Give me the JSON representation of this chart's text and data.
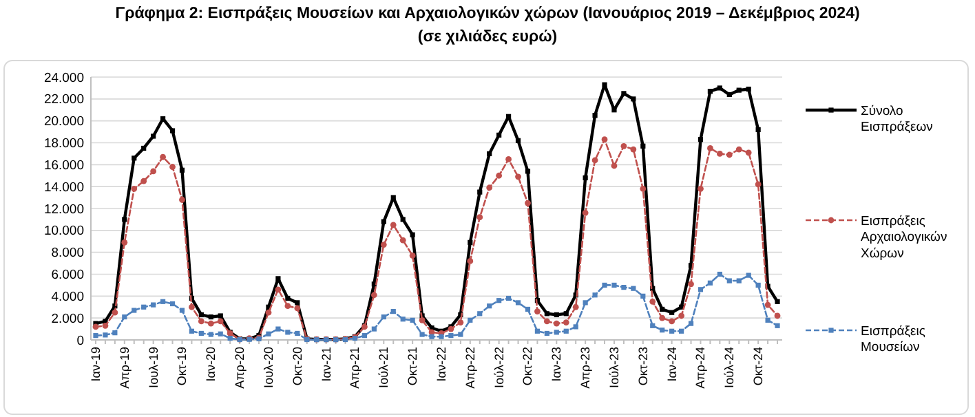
{
  "chart_data": {
    "type": "line",
    "title": "Γράφημα 2: Εισπράξεις Μουσείων και Αρχαιολογικών χώρων (Ιανουάριος 2019 – Δεκέμβριος 2024)",
    "subtitle": "(σε χιλιάδες ευρώ)",
    "categories": [
      "Ιαν-19",
      null,
      null,
      "Απρ-19",
      null,
      null,
      "Ιουλ-19",
      null,
      null,
      "Οκτ-19",
      null,
      null,
      "Ιαν-20",
      null,
      null,
      "Απρ-20",
      null,
      null,
      "Ιουλ-20",
      null,
      null,
      "Οκτ-20",
      null,
      null,
      "Ιαν-21",
      null,
      null,
      "Απρ-21",
      null,
      null,
      "Ιούλ-21",
      null,
      null,
      "Οκτ-21",
      null,
      null,
      "Ιαν-22",
      null,
      null,
      "Απρ-22",
      null,
      null,
      "Ιούλ-22",
      null,
      null,
      "Οκτ-22",
      null,
      null,
      "Ιαν-23",
      null,
      null,
      "Απρ-23",
      null,
      null,
      "Ιούλ-23",
      null,
      null,
      "Οκτ-23",
      null,
      null,
      "Ιαν-24",
      null,
      null,
      "Απρ-24",
      null,
      null,
      "Ιούλ-24",
      null,
      null,
      "Οκτ-24",
      null,
      null
    ],
    "series": [
      {
        "name": "Σύνολο Εισπράξεων",
        "color": "#000000",
        "marker": "square",
        "line_style": "solid",
        "values": [
          1500,
          1700,
          3100,
          11000,
          16600,
          17500,
          18600,
          20200,
          19100,
          15500,
          3800,
          2300,
          2100,
          2200,
          700,
          100,
          100,
          400,
          3000,
          5600,
          3800,
          3400,
          100,
          50,
          50,
          50,
          100,
          300,
          1300,
          5100,
          10800,
          13000,
          11000,
          9600,
          2200,
          1100,
          800,
          1200,
          2300,
          8900,
          13500,
          17000,
          18700,
          20400,
          18200,
          15400,
          3600,
          2400,
          2300,
          2400,
          4100,
          14800,
          20500,
          23300,
          21000,
          22500,
          22000,
          17700,
          4700,
          2800,
          2500,
          3000,
          6800,
          18300,
          22700,
          23000,
          22400,
          22800,
          22900,
          19200,
          4900,
          3500
        ]
      },
      {
        "name": "Εισπράξεις Αρχαιολογικών Χώρων",
        "color": "#c0504d",
        "marker": "circle",
        "line_style": "dashed",
        "values": [
          1200,
          1300,
          2500,
          8900,
          13800,
          14500,
          15400,
          16700,
          15800,
          12800,
          3000,
          1700,
          1500,
          1700,
          600,
          50,
          150,
          200,
          2500,
          4600,
          3100,
          2900,
          80,
          50,
          50,
          50,
          80,
          250,
          1200,
          4100,
          8700,
          10500,
          9100,
          7700,
          1800,
          700,
          600,
          1000,
          1600,
          7200,
          11200,
          13900,
          15000,
          16500,
          14900,
          12500,
          2600,
          1700,
          1500,
          1600,
          3000,
          11600,
          16400,
          18300,
          15900,
          17700,
          17400,
          13800,
          3500,
          2000,
          1700,
          2200,
          5100,
          13800,
          17500,
          17000,
          16900,
          17400,
          17100,
          14200,
          3200,
          2200
        ]
      },
      {
        "name": "Εισπράξεις Μουσείων",
        "color": "#4f81bd",
        "marker": "square",
        "line_style": "dashed",
        "values": [
          400,
          450,
          650,
          2100,
          2700,
          3000,
          3200,
          3500,
          3300,
          2700,
          800,
          600,
          500,
          550,
          150,
          30,
          50,
          100,
          550,
          1000,
          700,
          600,
          30,
          20,
          20,
          20,
          30,
          150,
          400,
          1000,
          2100,
          2600,
          1900,
          1800,
          500,
          300,
          300,
          400,
          500,
          1800,
          2400,
          3100,
          3600,
          3800,
          3400,
          2800,
          800,
          600,
          700,
          800,
          1200,
          3400,
          4100,
          5000,
          5000,
          4800,
          4700,
          4000,
          1300,
          900,
          800,
          800,
          1500,
          4600,
          5200,
          6000,
          5400,
          5400,
          5900,
          5000,
          1800,
          1300
        ]
      }
    ],
    "ylim": [
      0,
      24000
    ],
    "yticks": [
      {
        "value": 0,
        "label": "0"
      },
      {
        "value": 2000,
        "label": "2.000"
      },
      {
        "value": 4000,
        "label": "4.000"
      },
      {
        "value": 6000,
        "label": "6.000"
      },
      {
        "value": 8000,
        "label": "8.000"
      },
      {
        "value": 10000,
        "label": "10.000"
      },
      {
        "value": 12000,
        "label": "12.000"
      },
      {
        "value": 14000,
        "label": "14.000"
      },
      {
        "value": 16000,
        "label": "16.000"
      },
      {
        "value": 18000,
        "label": "18.000"
      },
      {
        "value": 20000,
        "label": "20.000"
      },
      {
        "value": 22000,
        "label": "22.000"
      },
      {
        "value": 24000,
        "label": "24.000"
      }
    ],
    "grid": "y",
    "legend": "right"
  }
}
